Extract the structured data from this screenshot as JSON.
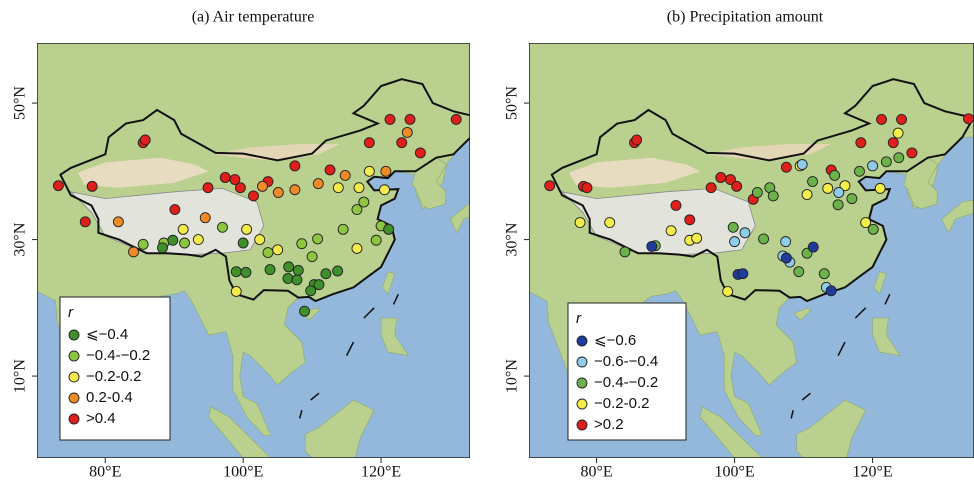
{
  "panels": [
    {
      "title": "(a) Air temperature",
      "xlim": [
        70.1,
        132.9
      ],
      "ylim": [
        -2,
        58.8
      ],
      "xticks": [
        {
          "value": 80,
          "label": "80°E"
        },
        {
          "value": 100,
          "label": "100°E"
        },
        {
          "value": 120,
          "label": "120°E"
        }
      ],
      "yticks": [
        {
          "value": 10,
          "label": "10°N"
        },
        {
          "value": 30,
          "label": "30°N"
        },
        {
          "value": 50,
          "label": "50°N"
        }
      ],
      "legend_title": "r",
      "classes": [
        {
          "label": "⩽−0.4",
          "color": "#3f8f2a"
        },
        {
          "label": "−0.4-−0.2",
          "color": "#8cc63f"
        },
        {
          "label": "−0.2-0.2",
          "color": "#f3ea4c"
        },
        {
          "label": "0.2-0.4",
          "color": "#f08a26"
        },
        {
          "label": ">0.4",
          "color": "#de1f1c"
        }
      ],
      "stations": [
        [
          85.5,
          44.2,
          4
        ],
        [
          85.8,
          44.6,
          4
        ],
        [
          78.1,
          37.8,
          4
        ],
        [
          73.2,
          37.9,
          4
        ],
        [
          77.1,
          32.6,
          4
        ],
        [
          90.1,
          34.4,
          4
        ],
        [
          94.9,
          37.6,
          4
        ],
        [
          97.4,
          39.1,
          4
        ],
        [
          98.8,
          38.8,
          4
        ],
        [
          99.6,
          37.6,
          4
        ],
        [
          101.5,
          36.4,
          4
        ],
        [
          103.6,
          38.5,
          4
        ],
        [
          107.5,
          40.8,
          4
        ],
        [
          112.6,
          40.2,
          4
        ],
        [
          118.3,
          44.2,
          4
        ],
        [
          121.3,
          47.6,
          4
        ],
        [
          124.2,
          47.6,
          4
        ],
        [
          123.0,
          44.2,
          4
        ],
        [
          125.7,
          42.7,
          4
        ],
        [
          130.9,
          47.6,
          4
        ],
        [
          81.9,
          32.6,
          3
        ],
        [
          84.1,
          28.2,
          3
        ],
        [
          94.5,
          33.2,
          3
        ],
        [
          102.8,
          37.8,
          3
        ],
        [
          105.1,
          36.9,
          3
        ],
        [
          107.5,
          37.3,
          3
        ],
        [
          110.9,
          38.2,
          3
        ],
        [
          114.8,
          39.4,
          3
        ],
        [
          120.7,
          40.0,
          3
        ],
        [
          123.8,
          45.7,
          3
        ],
        [
          91.3,
          31.5,
          2
        ],
        [
          93.5,
          30.0,
          2
        ],
        [
          113.8,
          37.6,
          2
        ],
        [
          116.8,
          37.6,
          2
        ],
        [
          120.5,
          37.3,
          2
        ],
        [
          118.3,
          40.0,
          2
        ],
        [
          102.4,
          30.0,
          2
        ],
        [
          100.5,
          31.5,
          2
        ],
        [
          105.0,
          28.5,
          2
        ],
        [
          116.5,
          28.7,
          2
        ],
        [
          99.0,
          22.4,
          2
        ],
        [
          85.5,
          29.3,
          1
        ],
        [
          88.5,
          29.5,
          1
        ],
        [
          91.5,
          29.5,
          1
        ],
        [
          97.0,
          31.8,
          1
        ],
        [
          103.6,
          28.1,
          1
        ],
        [
          108.5,
          29.4,
          1
        ],
        [
          114.5,
          31.5,
          1
        ],
        [
          116.5,
          34.4,
          1
        ],
        [
          117.5,
          35.5,
          1
        ],
        [
          119.3,
          29.9,
          1
        ],
        [
          110.0,
          27.5,
          1
        ],
        [
          110.8,
          30.1,
          1
        ],
        [
          120.0,
          32.0,
          1
        ],
        [
          88.3,
          28.8,
          0
        ],
        [
          89.8,
          29.9,
          0
        ],
        [
          100.0,
          29.5,
          0
        ],
        [
          99.0,
          25.3,
          0
        ],
        [
          100.4,
          25.2,
          0
        ],
        [
          103.9,
          25.6,
          0
        ],
        [
          106.6,
          26.0,
          0
        ],
        [
          106.5,
          24.3,
          0
        ],
        [
          107.8,
          24.1,
          0
        ],
        [
          108.0,
          25.5,
          0
        ],
        [
          110.3,
          23.4,
          0
        ],
        [
          111.0,
          23.4,
          0
        ],
        [
          112.0,
          25.0,
          0
        ],
        [
          113.7,
          25.4,
          0
        ],
        [
          121.1,
          31.5,
          0
        ],
        [
          108.9,
          19.5,
          0
        ],
        [
          109.8,
          22.5,
          0
        ]
      ]
    },
    {
      "title": "(b) Precipitation amount",
      "xlim": [
        70.2,
        134.7
      ],
      "ylim": [
        -2,
        58.8
      ],
      "xticks": [
        {
          "value": 80,
          "label": "80°E"
        },
        {
          "value": 100,
          "label": "100°E"
        },
        {
          "value": 120,
          "label": "120°E"
        }
      ],
      "yticks": [
        {
          "value": 10,
          "label": "10°N"
        },
        {
          "value": 30,
          "label": "30°N"
        },
        {
          "value": 50,
          "label": "50°N"
        }
      ],
      "legend_title": "r",
      "classes": [
        {
          "label": "⩽−0.6",
          "color": "#1f3c9c"
        },
        {
          "label": "−0.6-−0.4",
          "color": "#8ecdea"
        },
        {
          "label": "−0.4-−0.2",
          "color": "#6cb24a"
        },
        {
          "label": "−0.2-0.2",
          "color": "#f5ee4a"
        },
        {
          "label": ">0.2",
          "color": "#de1f1c"
        }
      ],
      "stations": [
        [
          85.5,
          44.2,
          4
        ],
        [
          85.8,
          44.6,
          4
        ],
        [
          78.1,
          37.8,
          4
        ],
        [
          73.2,
          37.9,
          4
        ],
        [
          78.6,
          37.6,
          4
        ],
        [
          91.5,
          35.0,
          4
        ],
        [
          93.5,
          32.9,
          4
        ],
        [
          96.6,
          37.6,
          4
        ],
        [
          98.0,
          39.1,
          4
        ],
        [
          99.4,
          38.8,
          4
        ],
        [
          100.3,
          37.8,
          4
        ],
        [
          102.7,
          35.9,
          4
        ],
        [
          107.5,
          40.6,
          4
        ],
        [
          114.0,
          40.2,
          4
        ],
        [
          118.3,
          44.2,
          4
        ],
        [
          121.3,
          47.6,
          4
        ],
        [
          124.2,
          47.6,
          4
        ],
        [
          123.0,
          44.2,
          4
        ],
        [
          125.7,
          42.7,
          4
        ],
        [
          133.9,
          47.7,
          4
        ],
        [
          77.6,
          32.5,
          3
        ],
        [
          81.9,
          32.5,
          3
        ],
        [
          90.8,
          31.3,
          3
        ],
        [
          93.5,
          29.9,
          3
        ],
        [
          94.5,
          30.2,
          3
        ],
        [
          109.5,
          40.8,
          3
        ],
        [
          110.5,
          36.6,
          3
        ],
        [
          113.5,
          37.5,
          3
        ],
        [
          116.0,
          37.9,
          3
        ],
        [
          121.1,
          37.5,
          3
        ],
        [
          119.0,
          32.5,
          3
        ],
        [
          123.7,
          45.6,
          3
        ],
        [
          99.0,
          22.4,
          3
        ],
        [
          84.1,
          28.2,
          2
        ],
        [
          88.5,
          29.1,
          2
        ],
        [
          99.8,
          31.8,
          2
        ],
        [
          103.3,
          36.9,
          2
        ],
        [
          105.1,
          37.6,
          2
        ],
        [
          105.6,
          36.4,
          2
        ],
        [
          111.3,
          38.5,
          2
        ],
        [
          114.5,
          39.4,
          2
        ],
        [
          118.1,
          40.0,
          2
        ],
        [
          122.0,
          41.4,
          2
        ],
        [
          123.8,
          42.0,
          2
        ],
        [
          115.0,
          35.1,
          2
        ],
        [
          117.0,
          36.0,
          2
        ],
        [
          110.5,
          28.0,
          2
        ],
        [
          109.3,
          25.3,
          2
        ],
        [
          104.2,
          30.1,
          2
        ],
        [
          120.1,
          31.5,
          2
        ],
        [
          113.0,
          25.0,
          2
        ],
        [
          100.0,
          29.7,
          1
        ],
        [
          101.5,
          31.0,
          1
        ],
        [
          107.4,
          29.7,
          1
        ],
        [
          108.0,
          26.7,
          1
        ],
        [
          107.0,
          27.6,
          1
        ],
        [
          109.8,
          41.0,
          1
        ],
        [
          115.1,
          36.9,
          1
        ],
        [
          113.3,
          23.0,
          1
        ],
        [
          120.0,
          40.8,
          1
        ],
        [
          88.0,
          29.0,
          0
        ],
        [
          100.5,
          24.9,
          0
        ],
        [
          101.2,
          25.0,
          0
        ],
        [
          111.4,
          28.9,
          0
        ],
        [
          107.5,
          27.3,
          0
        ],
        [
          114.0,
          22.5,
          0
        ]
      ]
    }
  ]
}
